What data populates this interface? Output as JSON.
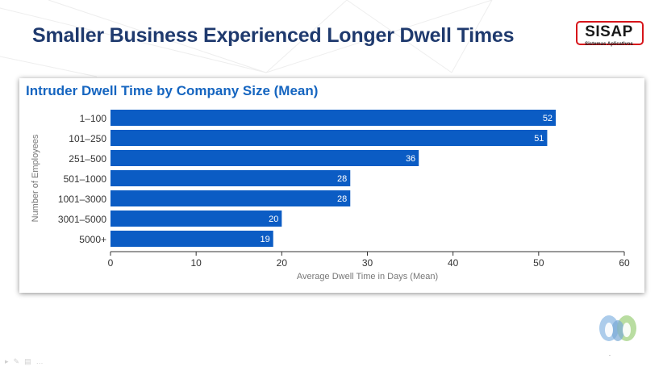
{
  "slide": {
    "title": "Smaller Business Experienced Longer Dwell Times"
  },
  "logo": {
    "name": "SISAP",
    "tagline": "Sistemas Aplicativos",
    "accent_color": "#d7141a"
  },
  "chart_data": {
    "type": "bar",
    "orientation": "horizontal",
    "title": "Intruder Dwell Time by Company Size (Mean)",
    "categories": [
      "1–100",
      "101–250",
      "251–500",
      "501–1000",
      "1001–3000",
      "3001–5000",
      "5000+"
    ],
    "values": [
      52,
      51,
      36,
      28,
      28,
      20,
      19
    ],
    "xlabel": "Average Dwell Time in Days (Mean)",
    "ylabel": "Number of Employees",
    "xlim": [
      0,
      60
    ],
    "xticks": [
      0,
      10,
      20,
      30,
      40,
      50,
      60
    ],
    "bar_color": "#0b5cc4",
    "grid": false,
    "data_labels": true
  },
  "overlay": {
    "app_icon": "webex-icon",
    "toolbar_icons": [
      "pointer-icon",
      "pen-icon",
      "slides-icon",
      "more-icon"
    ]
  }
}
